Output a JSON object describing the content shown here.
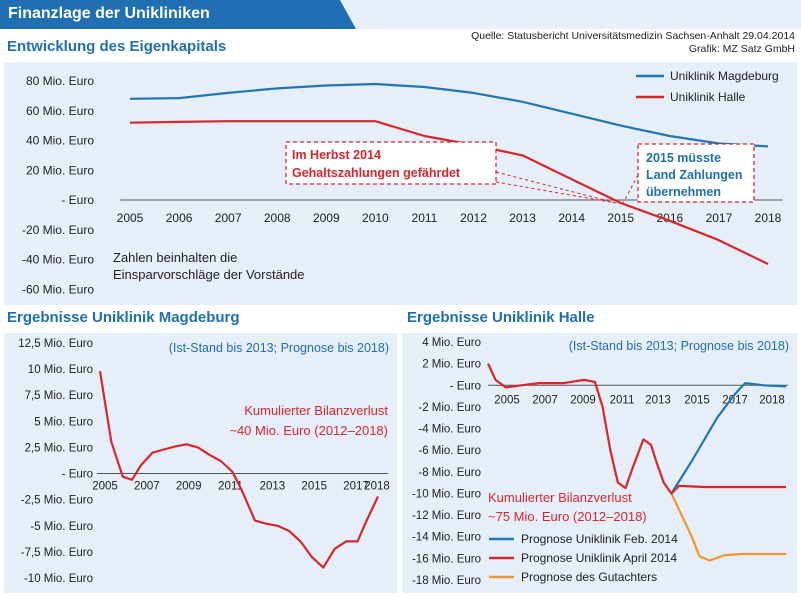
{
  "header": {
    "title": "Finanzlage der Unikliniken",
    "source": "Quelle: Statusbericht Universitätsmedizin Sachsen-Anhalt 29.04.2014",
    "credit": "Grafik: MZ Satz GmbH"
  },
  "colors": {
    "magdeburg": "#1f78b4",
    "halle": "#d9262d",
    "gutachter": "#f0962e",
    "accent": "#1f6fb2",
    "panel": "#e6eef7"
  },
  "top": {
    "title": "Entwicklung des Eigenkapitals",
    "note_lines": [
      "Zahlen beinhalten die",
      "Einsparvorschläge der Vorstände"
    ],
    "callout1_lines": [
      "Im Herbst 2014",
      "Gehaltszahlungen gefährdet"
    ],
    "callout2_lines": [
      "2015 müsste",
      "Land Zahlungen",
      "übernehmen"
    ]
  },
  "left": {
    "title": "Ergebnisse Uniklinik Magdeburg",
    "subtitle": "(Ist-Stand bis 2013; Prognose bis 2018)",
    "annotation_lines": [
      "Kumulierter Bilanzverlust",
      "~40 Mio. Euro (2012–2018)"
    ]
  },
  "right": {
    "title": "Ergebnisse Uniklinik Halle",
    "subtitle": "(Ist-Stand bis 2013; Prognose bis 2018)",
    "annotation_lines": [
      "Kumulierter Bilanzverlust",
      "~75 Mio. Euro (2012–2018)"
    ]
  },
  "chart_data": [
    {
      "type": "line",
      "title": "Entwicklung des Eigenkapitals",
      "x_ticks": [
        "2005",
        "2006",
        "2007",
        "2008",
        "2009",
        "2010",
        "2011",
        "2012",
        "2013",
        "2014",
        "2015",
        "2016",
        "2017",
        "2018"
      ],
      "y_ticks": [
        "80 Mio. Euro",
        "60 Mio. Euro",
        "40 Mio. Euro",
        "20 Mio. Euro",
        "- Euro",
        "-20 Mio. Euro",
        "-40 Mio. Euro",
        "-60 Mio. Euro"
      ],
      "ylim": [
        -60,
        80
      ],
      "legend": "top-right",
      "series": [
        {
          "name": "Uniklinik Magdeburg",
          "color": "#1f78b4",
          "points": [
            [
              2005,
              68
            ],
            [
              2006,
              68.5
            ],
            [
              2007,
              72
            ],
            [
              2008,
              75
            ],
            [
              2009,
              77
            ],
            [
              2010,
              78
            ],
            [
              2011,
              76
            ],
            [
              2012,
              72
            ],
            [
              2013,
              66
            ],
            [
              2014,
              58
            ],
            [
              2015,
              50
            ],
            [
              2016,
              43
            ],
            [
              2017,
              38
            ],
            [
              2018,
              36
            ]
          ]
        },
        {
          "name": "Uniklinik Halle",
          "color": "#d9262d",
          "points": [
            [
              2005,
              52
            ],
            [
              2006,
              52.5
            ],
            [
              2007,
              53
            ],
            [
              2008,
              53
            ],
            [
              2009,
              53
            ],
            [
              2010,
              53
            ],
            [
              2011,
              43
            ],
            [
              2012,
              37
            ],
            [
              2013,
              30
            ],
            [
              2014,
              14
            ],
            [
              2015,
              -2
            ],
            [
              2016,
              -14
            ],
            [
              2017,
              -27
            ],
            [
              2018,
              -43
            ]
          ]
        }
      ]
    },
    {
      "type": "line",
      "title": "Ergebnisse Uniklinik Magdeburg",
      "x_ticks": [
        "2005",
        "2007",
        "2009",
        "2011",
        "2013",
        "2015",
        "2017",
        "2018"
      ],
      "y_ticks": [
        "12,5 Mio. Euro",
        "10 Mio. Euro",
        "7,5 Mio. Euro",
        "5 Mio. Euro",
        "2,5 Mio. Euro",
        "- Euro",
        "-2,5 Mio. Euro",
        "-5 Mio. Euro",
        "-7,5 Mio. Euro",
        "-10 Mio. Euro"
      ],
      "ylim": [
        -10,
        12.5
      ],
      "series": [
        {
          "name": "Ergebnis Magdeburg",
          "color": "#d9262d",
          "points": [
            [
              2004.2,
              9.8
            ],
            [
              2004.7,
              3
            ],
            [
              2005.2,
              -0.3
            ],
            [
              2005.6,
              -0.6
            ],
            [
              2006,
              0.8
            ],
            [
              2006.5,
              2
            ],
            [
              2007,
              2.3
            ],
            [
              2007.5,
              2.6
            ],
            [
              2008,
              2.8
            ],
            [
              2008.5,
              2.5
            ],
            [
              2009,
              1.8
            ],
            [
              2009.5,
              1.2
            ],
            [
              2010,
              0.2
            ],
            [
              2010.4,
              -1.5
            ],
            [
              2010.8,
              -3.5
            ],
            [
              2011,
              -4.5
            ],
            [
              2011.5,
              -4.8
            ],
            [
              2012,
              -5
            ],
            [
              2012.5,
              -5.5
            ],
            [
              2013,
              -6.5
            ],
            [
              2013.5,
              -8
            ],
            [
              2014,
              -9
            ],
            [
              2014.5,
              -7.2
            ],
            [
              2015,
              -6.5
            ],
            [
              2015.5,
              -6.5
            ],
            [
              2015.9,
              -4.5
            ],
            [
              2016.4,
              -2.2
            ]
          ]
        }
      ]
    },
    {
      "type": "line",
      "title": "Ergebnisse Uniklinik Halle",
      "x_ticks": [
        "2005",
        "2007",
        "2009",
        "2011",
        "2013",
        "2015",
        "2017",
        "2018"
      ],
      "y_ticks": [
        "4 Mio. Euro",
        "2 Mio. Euro",
        "- Euro",
        "-2 Mio. Euro",
        "-4 Mio. Euro",
        "-6 Mio. Euro",
        "-8 Mio. Euro",
        "-10 Mio. Euro",
        "-12 Mio. Euro",
        "-14 Mio. Euro",
        "-16 Mio. Euro",
        "-18 Mio. Euro"
      ],
      "ylim": [
        -18,
        4
      ],
      "legend": "bottom-left",
      "series": [
        {
          "name": "Prognose Uniklinik Feb. 2014",
          "color": "#1f78b4",
          "points": [
            [
              2011.7,
              -10
            ],
            [
              2012.5,
              -7
            ],
            [
              2013.5,
              -3
            ],
            [
              2014.2,
              -0.8
            ],
            [
              2014.6,
              0.2
            ],
            [
              2015.3,
              0
            ],
            [
              2016.2,
              -0.1
            ]
          ]
        },
        {
          "name": "Prognose Uniklinik April 2014",
          "color": "#d9262d",
          "points": [
            [
              2004.5,
              2
            ],
            [
              2004.8,
              0.5
            ],
            [
              2005.2,
              -0.2
            ],
            [
              2005.8,
              0
            ],
            [
              2006.5,
              0.2
            ],
            [
              2007,
              0.2
            ],
            [
              2007.5,
              0.2
            ],
            [
              2008,
              0.4
            ],
            [
              2008.3,
              0.5
            ],
            [
              2008.7,
              0.3
            ],
            [
              2009,
              -2
            ],
            [
              2009.3,
              -6
            ],
            [
              2009.6,
              -9
            ],
            [
              2009.9,
              -9.5
            ],
            [
              2010.2,
              -7.5
            ],
            [
              2010.6,
              -5
            ],
            [
              2010.9,
              -5.5
            ],
            [
              2011.1,
              -7
            ],
            [
              2011.4,
              -9
            ],
            [
              2011.7,
              -10
            ],
            [
              2012,
              -9.3
            ],
            [
              2013,
              -9.4
            ],
            [
              2014,
              -9.4
            ],
            [
              2015,
              -9.4
            ],
            [
              2016.2,
              -9.4
            ]
          ]
        },
        {
          "name": "Prognose des Gutachters",
          "color": "#f0962e",
          "points": [
            [
              2011.7,
              -10
            ],
            [
              2012.1,
              -12
            ],
            [
              2012.5,
              -14
            ],
            [
              2012.8,
              -15.8
            ],
            [
              2013.2,
              -16.2
            ],
            [
              2013.8,
              -15.7
            ],
            [
              2014.5,
              -15.6
            ],
            [
              2015.3,
              -15.6
            ],
            [
              2016.2,
              -15.6
            ]
          ]
        }
      ]
    }
  ]
}
